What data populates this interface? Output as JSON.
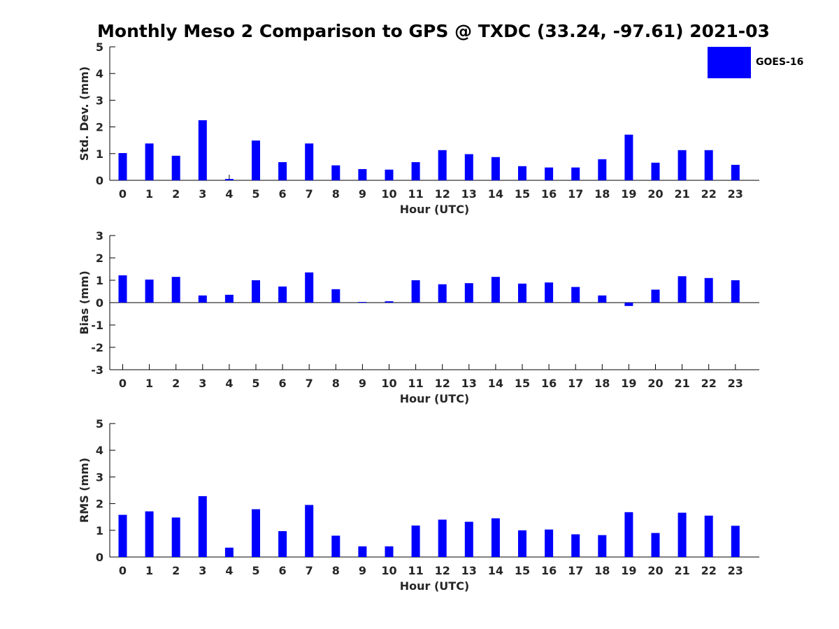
{
  "chart_data": {
    "title": "Monthly Meso 2 Comparison to GPS @ TXDC (33.24, -97.61) 2021-03",
    "legend": {
      "entries": [
        "GOES-16"
      ],
      "position": "top-right",
      "color": "#0000ff"
    },
    "bar_color": "#0000ff",
    "panels": [
      {
        "type": "bar",
        "ylabel": "Std. Dev. (mm)",
        "xlabel": "Hour (UTC)",
        "ylim": [
          0,
          5
        ],
        "yticks": [
          "0",
          "1",
          "2",
          "3",
          "4",
          "5"
        ],
        "categories": [
          "0",
          "1",
          "2",
          "3",
          "4",
          "5",
          "6",
          "7",
          "8",
          "9",
          "10",
          "11",
          "12",
          "13",
          "14",
          "15",
          "16",
          "17",
          "18",
          "19",
          "20",
          "21",
          "22",
          "23"
        ],
        "series": [
          {
            "name": "GOES-16",
            "values": [
              1.02,
              1.38,
              0.92,
              2.25,
              0.05,
              1.49,
              0.68,
              1.38,
              0.56,
              0.42,
              0.4,
              0.68,
              1.13,
              0.98,
              0.87,
              0.53,
              0.48,
              0.48,
              0.79,
              1.71,
              0.66,
              1.13,
              1.13,
              0.58
            ]
          }
        ]
      },
      {
        "type": "bar",
        "ylabel": "Bias (mm)",
        "xlabel": "Hour (UTC)",
        "ylim": [
          -3,
          3
        ],
        "yticks": [
          "-3",
          "-2",
          "-1",
          "0",
          "1",
          "2",
          "3"
        ],
        "categories": [
          "0",
          "1",
          "2",
          "3",
          "4",
          "5",
          "6",
          "7",
          "8",
          "9",
          "10",
          "11",
          "12",
          "13",
          "14",
          "15",
          "16",
          "17",
          "18",
          "19",
          "20",
          "21",
          "22",
          "23"
        ],
        "series": [
          {
            "name": "GOES-16",
            "values": [
              1.22,
              1.03,
              1.15,
              0.32,
              0.35,
              1.0,
              0.72,
              1.35,
              0.6,
              0.03,
              0.06,
              1.0,
              0.82,
              0.87,
              1.15,
              0.85,
              0.9,
              0.7,
              0.32,
              -0.15,
              0.58,
              1.18,
              1.1,
              1.0
            ]
          }
        ]
      },
      {
        "type": "bar",
        "ylabel": "RMS (mm)",
        "xlabel": "Hour (UTC)",
        "ylim": [
          0,
          5
        ],
        "yticks": [
          "0",
          "1",
          "2",
          "3",
          "4",
          "5"
        ],
        "categories": [
          "0",
          "1",
          "2",
          "3",
          "4",
          "5",
          "6",
          "7",
          "8",
          "9",
          "10",
          "11",
          "12",
          "13",
          "14",
          "15",
          "16",
          "17",
          "18",
          "19",
          "20",
          "21",
          "22",
          "23"
        ],
        "series": [
          {
            "name": "GOES-16",
            "values": [
              1.58,
              1.71,
              1.48,
              2.28,
              0.35,
              1.79,
              0.97,
              1.95,
              0.8,
              0.4,
              0.4,
              1.18,
              1.4,
              1.32,
              1.45,
              1.0,
              1.03,
              0.85,
              0.82,
              1.68,
              0.9,
              1.66,
              1.55,
              1.17
            ]
          }
        ]
      }
    ]
  }
}
